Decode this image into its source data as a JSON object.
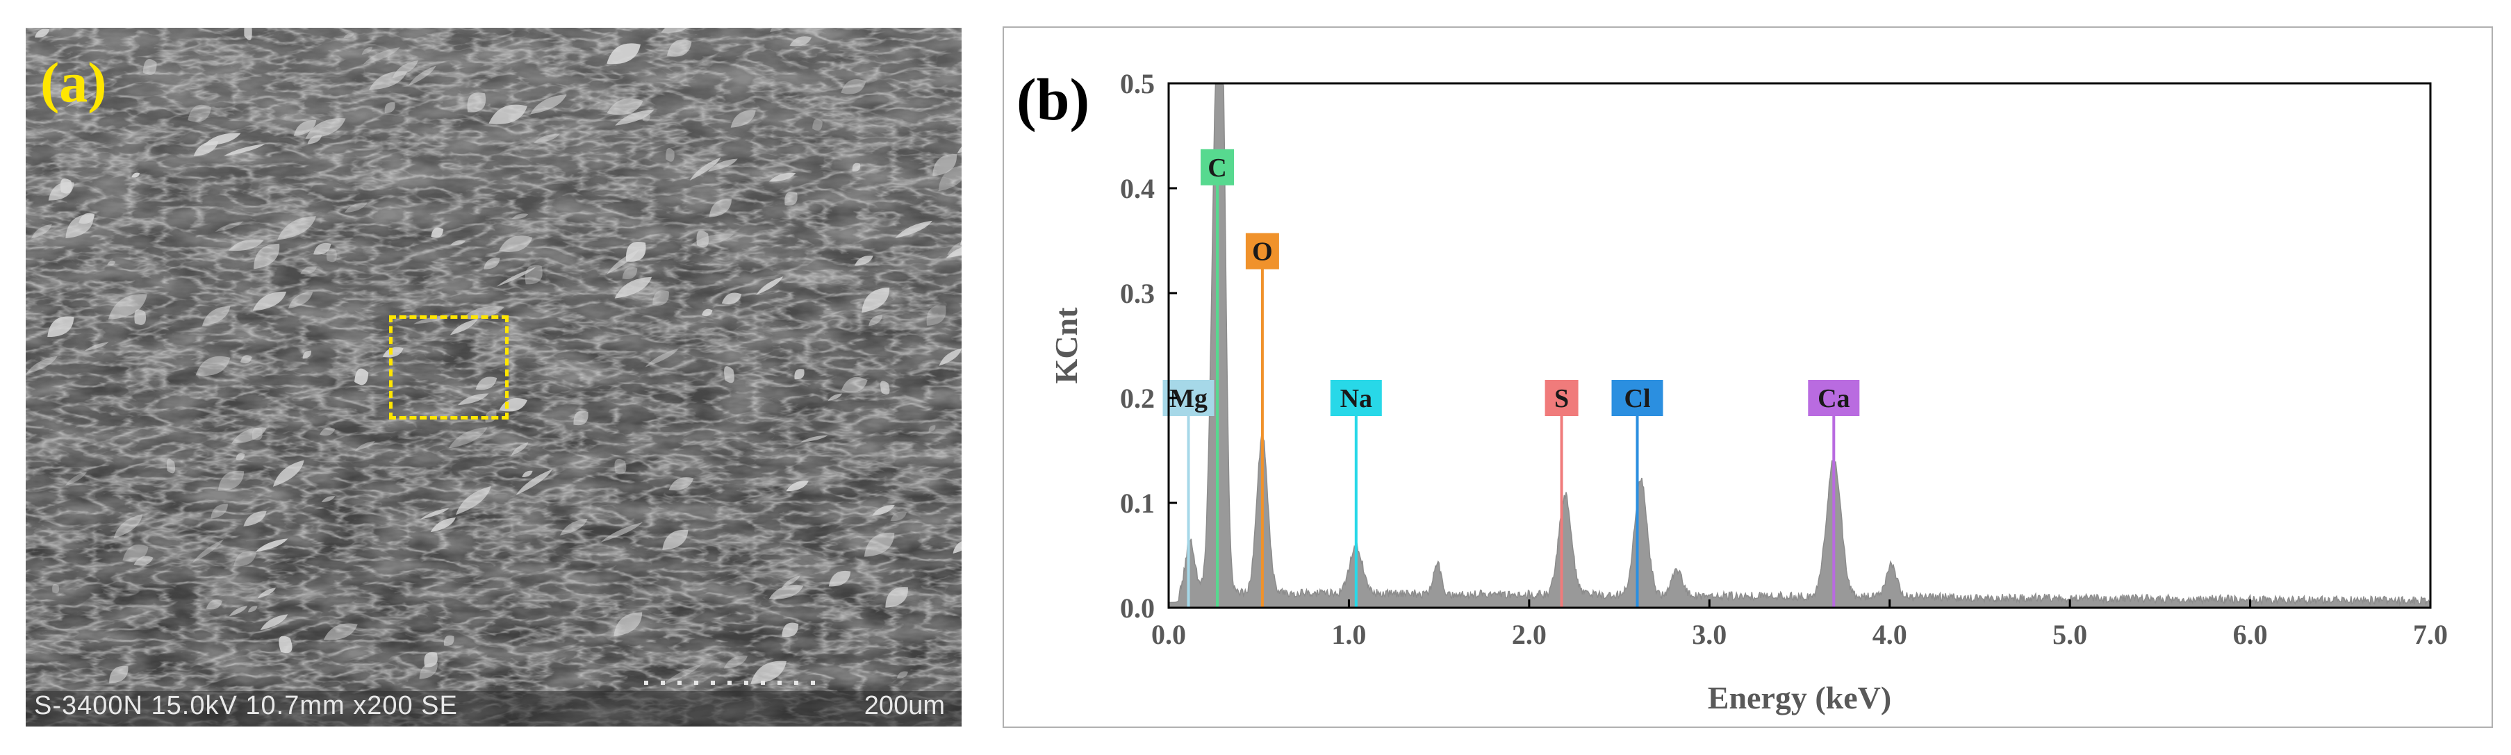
{
  "panel_a": {
    "label": "(a)",
    "footer": "S-3400N 15.0kV 10.7mm x200 SE",
    "scale_label": "200um"
  },
  "panel_b": {
    "label": "(b)"
  },
  "chart_data": {
    "type": "area",
    "title": "",
    "xlabel": "Energy (keV)",
    "ylabel": "KCnt",
    "xlim": [
      0.0,
      7.0
    ],
    "ylim": [
      0.0,
      0.5
    ],
    "xticks": [
      "0.0",
      "1.0",
      "2.0",
      "3.0",
      "4.0",
      "5.0",
      "6.0",
      "7.0"
    ],
    "yticks": [
      "0.0",
      "0.1",
      "0.2",
      "0.3",
      "0.4",
      "0.5"
    ],
    "baseline": 0.015,
    "fill_color": "#999999",
    "peaks": [
      {
        "element": "Mg",
        "energy": 0.12,
        "height": 0.05,
        "width": 0.025
      },
      {
        "element": "C",
        "energy": 0.27,
        "height": 0.5,
        "width": 0.03
      },
      {
        "element": "C-shoulder",
        "energy": 0.3,
        "height": 0.24,
        "width": 0.02
      },
      {
        "element": "O",
        "energy": 0.52,
        "height": 0.15,
        "width": 0.03
      },
      {
        "element": "Na",
        "energy": 1.04,
        "height": 0.045,
        "width": 0.035
      },
      {
        "element": "minor",
        "energy": 1.49,
        "height": 0.03,
        "width": 0.02
      },
      {
        "element": "S",
        "energy": 2.2,
        "height": 0.095,
        "width": 0.035
      },
      {
        "element": "Cl",
        "energy": 2.62,
        "height": 0.11,
        "width": 0.035
      },
      {
        "element": "Cl-Kb",
        "energy": 2.82,
        "height": 0.025,
        "width": 0.03
      },
      {
        "element": "Ca",
        "energy": 3.69,
        "height": 0.13,
        "width": 0.04
      },
      {
        "element": "Ca-Kb",
        "energy": 4.01,
        "height": 0.03,
        "width": 0.03
      }
    ],
    "markers": [
      {
        "label": "Mg",
        "energy": 0.11,
        "label_y": 0.2,
        "color": "#a6d8e8",
        "text_color": "#1a1a1a"
      },
      {
        "label": "C",
        "energy": 0.27,
        "label_y": 0.42,
        "color": "#57d98f",
        "text_color": "#1a1a1a"
      },
      {
        "label": "O",
        "energy": 0.52,
        "label_y": 0.34,
        "color": "#f0922b",
        "text_color": "#1a1a1a"
      },
      {
        "label": "Na",
        "energy": 1.04,
        "label_y": 0.2,
        "color": "#28d8e8",
        "text_color": "#1a1a1a"
      },
      {
        "label": "S",
        "energy": 2.18,
        "label_y": 0.2,
        "color": "#f07b7b",
        "text_color": "#1a1a1a"
      },
      {
        "label": "Cl",
        "energy": 2.6,
        "label_y": 0.2,
        "color": "#2b8fe0",
        "text_color": "#1a1a1a"
      },
      {
        "label": "Ca",
        "energy": 3.69,
        "label_y": 0.2,
        "color": "#b96be0",
        "text_color": "#1a1a1a"
      }
    ]
  }
}
